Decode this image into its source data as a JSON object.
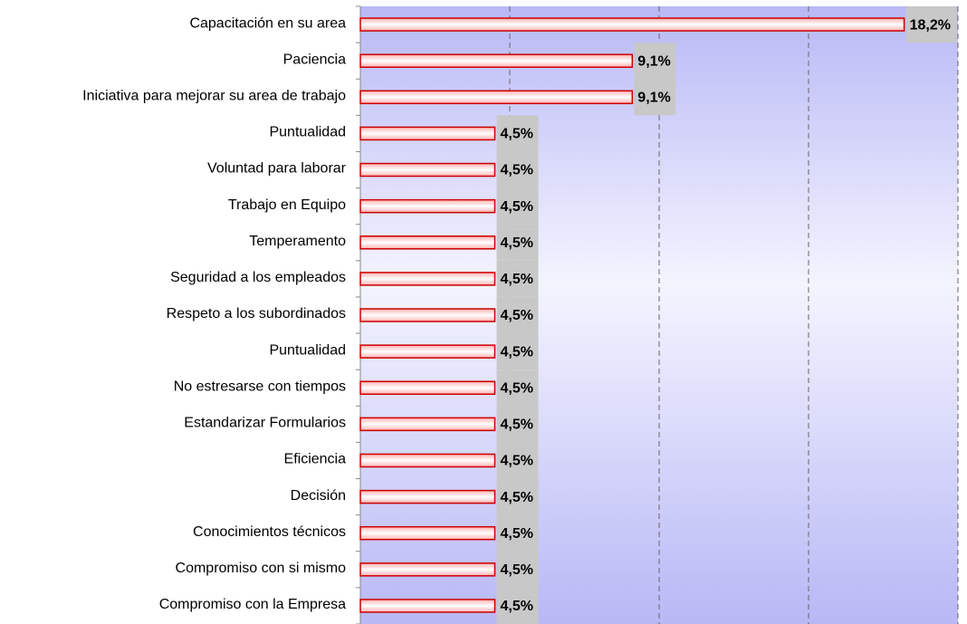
{
  "chart_data": {
    "type": "bar",
    "orientation": "horizontal",
    "categories": [
      "Capacitación en su area",
      "Paciencia",
      "Iniciativa para mejorar su area de trabajo",
      "Puntualidad",
      "Voluntad para laborar",
      "Trabajo en Equipo",
      "Temperamento",
      "Seguridad a los empleados",
      "Respeto a los subordinados",
      "Puntualidad",
      "No estresarse con tiempos",
      "Estandarizar Formularios",
      "Eficiencia",
      "Decisión",
      "Conocimientos técnicos",
      "Compromiso con si mismo",
      "Compromiso con la Empresa"
    ],
    "values": [
      18.2,
      9.1,
      9.1,
      4.5,
      4.5,
      4.5,
      4.5,
      4.5,
      4.5,
      4.5,
      4.5,
      4.5,
      4.5,
      4.5,
      4.5,
      4.5,
      4.5
    ],
    "value_labels": [
      "18,2%",
      "9,1%",
      "9,1%",
      "4,5%",
      "4,5%",
      "4,5%",
      "4,5%",
      "4,5%",
      "4,5%",
      "4,5%",
      "4,5%",
      "4,5%",
      "4,5%",
      "4,5%",
      "4,5%",
      "4,5%",
      "4,5%"
    ],
    "color": "#cc0000",
    "xlim": [
      0,
      20
    ],
    "xticks": [
      0,
      5,
      10,
      15,
      20
    ],
    "grid": true
  }
}
